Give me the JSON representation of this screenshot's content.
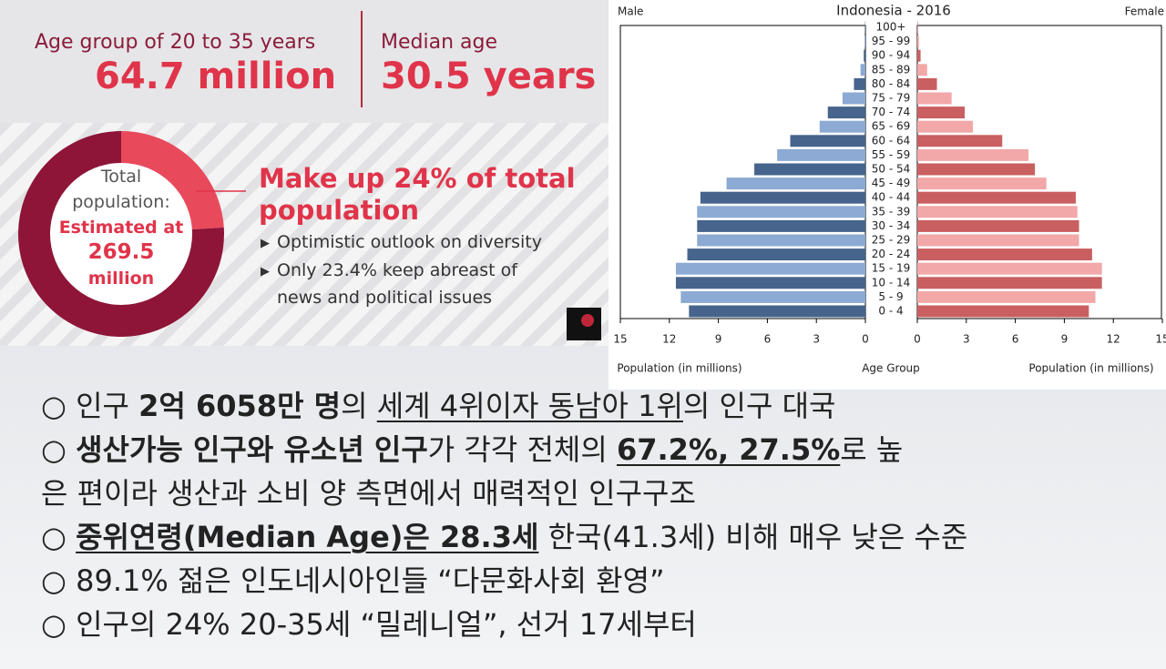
{
  "infographic": {
    "age_group_label": "Age group of 20 to 35 years",
    "age_group_value": "64.7 million",
    "median_label": "Median age",
    "median_value": "30.5 years",
    "donut_center": [
      "Total",
      "population:",
      "Estimated at",
      "269.5",
      "million"
    ],
    "headline": [
      "Make up 24% of total",
      "population"
    ],
    "bullets": [
      "Optimistic outlook on diversity",
      "Only 23.4% keep abreast of",
      "news and political issues"
    ]
  },
  "chart_data": [
    {
      "type": "pyramid",
      "title": "Indonesia - 2016",
      "left_label": "Male",
      "right_label": "Female",
      "x_label": "Population (in millions)",
      "center_label": "Age Group",
      "categories": [
        "0 - 4",
        "5 - 9",
        "10 - 14",
        "15 - 19",
        "20 - 24",
        "25 - 29",
        "30 - 34",
        "35 - 39",
        "40 - 44",
        "45 - 49",
        "50 - 54",
        "55 - 59",
        "60 - 64",
        "65 - 69",
        "70 - 74",
        "75 - 79",
        "80 - 84",
        "85 - 89",
        "90 - 94",
        "95 - 99",
        "100+"
      ],
      "series": [
        {
          "name": "Male",
          "colors": [
            "#46648c",
            "#8caad3"
          ],
          "values": [
            10.8,
            11.3,
            11.6,
            11.6,
            10.9,
            10.3,
            10.3,
            10.3,
            10.1,
            8.5,
            6.8,
            5.4,
            4.6,
            2.8,
            2.3,
            1.4,
            0.7,
            0.3,
            0.1,
            0.05,
            0.02
          ]
        },
        {
          "name": "Female",
          "colors": [
            "#c95f60",
            "#f2a7a8"
          ],
          "values": [
            10.5,
            10.9,
            11.3,
            11.3,
            10.7,
            9.9,
            9.9,
            9.8,
            9.7,
            7.9,
            7.2,
            6.8,
            5.2,
            3.4,
            2.9,
            2.1,
            1.2,
            0.6,
            0.2,
            0.1,
            0.03
          ]
        }
      ],
      "xlim": [
        0,
        15
      ],
      "xticks": [
        15,
        12,
        9,
        6,
        3,
        0
      ]
    },
    {
      "type": "donut",
      "values": [
        24,
        76
      ],
      "colors": [
        "#e84a5c",
        "#8e1538"
      ]
    }
  ],
  "notes": [
    [
      {
        "text": "○ 인구 "
      },
      {
        "text": "2억 6058만 명",
        "bold": true
      },
      {
        "text": "의 "
      },
      {
        "text": "세계 4위이자 동남아 1위",
        "underline": true
      },
      {
        "text": "의 인구 대국"
      }
    ],
    [
      {
        "text": "○ "
      },
      {
        "text": "생산가능 인구와 유소년 인구",
        "bold": true
      },
      {
        "text": "가 각각 전체의 "
      },
      {
        "text": "67.2%, 27.5%",
        "bold": true,
        "underline": true
      },
      {
        "text": "로 높"
      }
    ],
    [
      {
        "text": "은 편이라 생산과 소비 양 측면에서 매력적인 인구구조"
      }
    ],
    [
      {
        "text": "○ "
      },
      {
        "text": "중위연령(Median Age)은 28.3세",
        "bold": true,
        "underline": true
      },
      {
        "text": " 한국(41.3세) 비해 매우 낮은 수준"
      }
    ],
    [
      {
        "text": "○ 89.1% 젊은 인도네시아인들 “다문화사회 환영”"
      }
    ],
    [
      {
        "text": "○ 인구의 24% 20-35세 “밀레니얼”, 선거 17세부터"
      }
    ]
  ]
}
